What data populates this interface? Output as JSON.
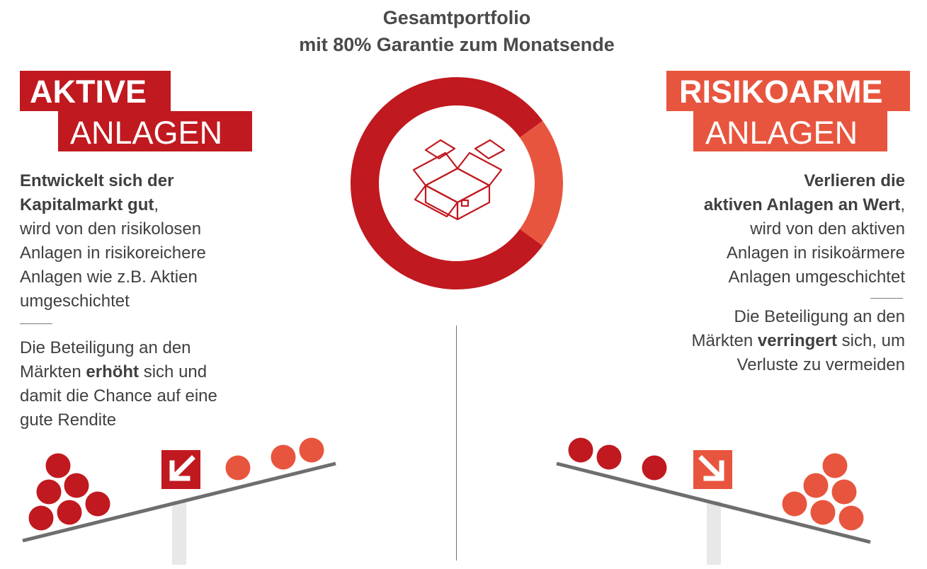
{
  "title": {
    "line1": "Gesamtportfolio",
    "line2": "mit 80% Garantie zum Monatsende"
  },
  "left": {
    "heading_line1": "AKTIVE",
    "heading_line2": "ANLAGEN",
    "para1": {
      "bold1": "Entwickelt sich der",
      "bold2": "Kapitalmarkt gut",
      "after_bold": ",",
      "line3": "wird von den risikolosen",
      "line4": "Anlagen in risikoreichere",
      "line5": "Anlagen wie z.B. Aktien",
      "line6": "umgeschichtet"
    },
    "para2": {
      "line1": "Die Beteiligung an den",
      "line2_pre": "Märkten ",
      "line2_bold": "erhöht",
      "line2_post": " sich und",
      "line3": "damit die Chance auf eine",
      "line4": "gute Rendite"
    },
    "arrow_icon": "arrow-down-left-icon"
  },
  "right": {
    "heading_line1": "RISIKOARME",
    "heading_line2": "ANLAGEN",
    "para1": {
      "bold1": "Verlieren die",
      "bold2": "aktiven Anlagen an Wert",
      "after_bold": ",",
      "line3": "wird von den aktiven",
      "line4": "Anlagen in risikoärmere",
      "line5": "Anlagen umgeschichtet"
    },
    "para2": {
      "line1": "Die Beteiligung an den",
      "line2_pre": "Märkten ",
      "line2_bold": "verringert",
      "line2_post": " sich, um",
      "line3": "Verluste zu vermeiden"
    },
    "arrow_icon": "arrow-down-right-icon"
  },
  "donut": {
    "icon": "open-box-icon",
    "segments": [
      {
        "share": 0.8,
        "color": "#c0191f"
      },
      {
        "share": 0.2,
        "color": "#e8553e"
      }
    ]
  },
  "colors": {
    "active": "#c0191f",
    "low_risk": "#e8553e",
    "beam": "#6e6e6e",
    "post": "#e8e8e8"
  }
}
